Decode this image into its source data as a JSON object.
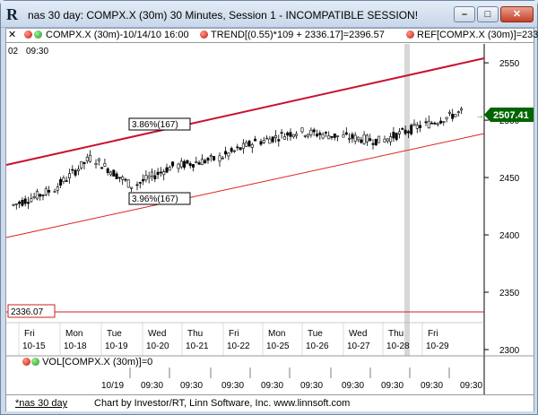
{
  "window": {
    "title": "nas 30 day: COMPX.X (30m) 30 Minutes, Session 1 - INCOMPATIBLE SESSION!",
    "app_icon": "R",
    "minimize_icon": "minimize-icon",
    "maximize_icon": "maximize-icon",
    "close_icon": "close-icon"
  },
  "header": {
    "close_glyph": "✕",
    "symbol_label": "COMPX.X (30m)-10/14/10 16:00",
    "trend_label": "TREND[(0.55)*109 + 2336.17]=2396.57",
    "ref_label": "REF[COMPX.X (30m)]=233",
    "subheader_left": "02",
    "subheader_time": "09:30"
  },
  "chart": {
    "price_tag": "2507.41",
    "ref_tag": "2336.07",
    "upper_channel_label": "3.86%(167)",
    "lower_channel_label": "3.96%(167)",
    "y_axis_labels": [
      "2550",
      "2500",
      "2450",
      "2400",
      "2350",
      "2300"
    ],
    "day_labels": [
      "Fri",
      "Mon",
      "Tue",
      "Wed",
      "Thu",
      "Fri",
      "Mon",
      "Tue",
      "Wed",
      "Thu",
      "Fri"
    ],
    "date_labels": [
      "10-15",
      "10-18",
      "10-19",
      "10-20",
      "10-21",
      "10-22",
      "10-25",
      "10-26",
      "10-27",
      "10-28",
      "10-29"
    ],
    "colors": {
      "trend": "#cc1030",
      "channel_lower": "#e02020",
      "ref_line": "#cc2020",
      "up_tag": "#006400"
    }
  },
  "chart_data": {
    "type": "line",
    "title": "COMPX.X (30m)",
    "ylim": [
      2300,
      2560
    ],
    "x": [
      "10-15",
      "10-18",
      "10-19",
      "10-20",
      "10-21",
      "10-22",
      "10-25",
      "10-26",
      "10-27",
      "10-28",
      "10-29"
    ],
    "series": [
      {
        "name": "COMPX.X (30m)",
        "values": [
          2438,
          2467,
          2443,
          2460,
          2466,
          2481,
          2490,
          2486,
          2482,
          2495,
          2507
        ]
      }
    ]
  },
  "volume": {
    "label": "VOL[COMPX.X (30m)]=0",
    "date_label": "10/19",
    "time_labels": [
      "09:30",
      "09:30",
      "09:30",
      "09:30",
      "09:30",
      "09:30",
      "09:30",
      "09:30",
      "09:30"
    ]
  },
  "footer": {
    "tab_label": "*nas 30 day",
    "credit": "Chart by Investor/RT, Linn Software, Inc. www.linnsoft.com"
  }
}
